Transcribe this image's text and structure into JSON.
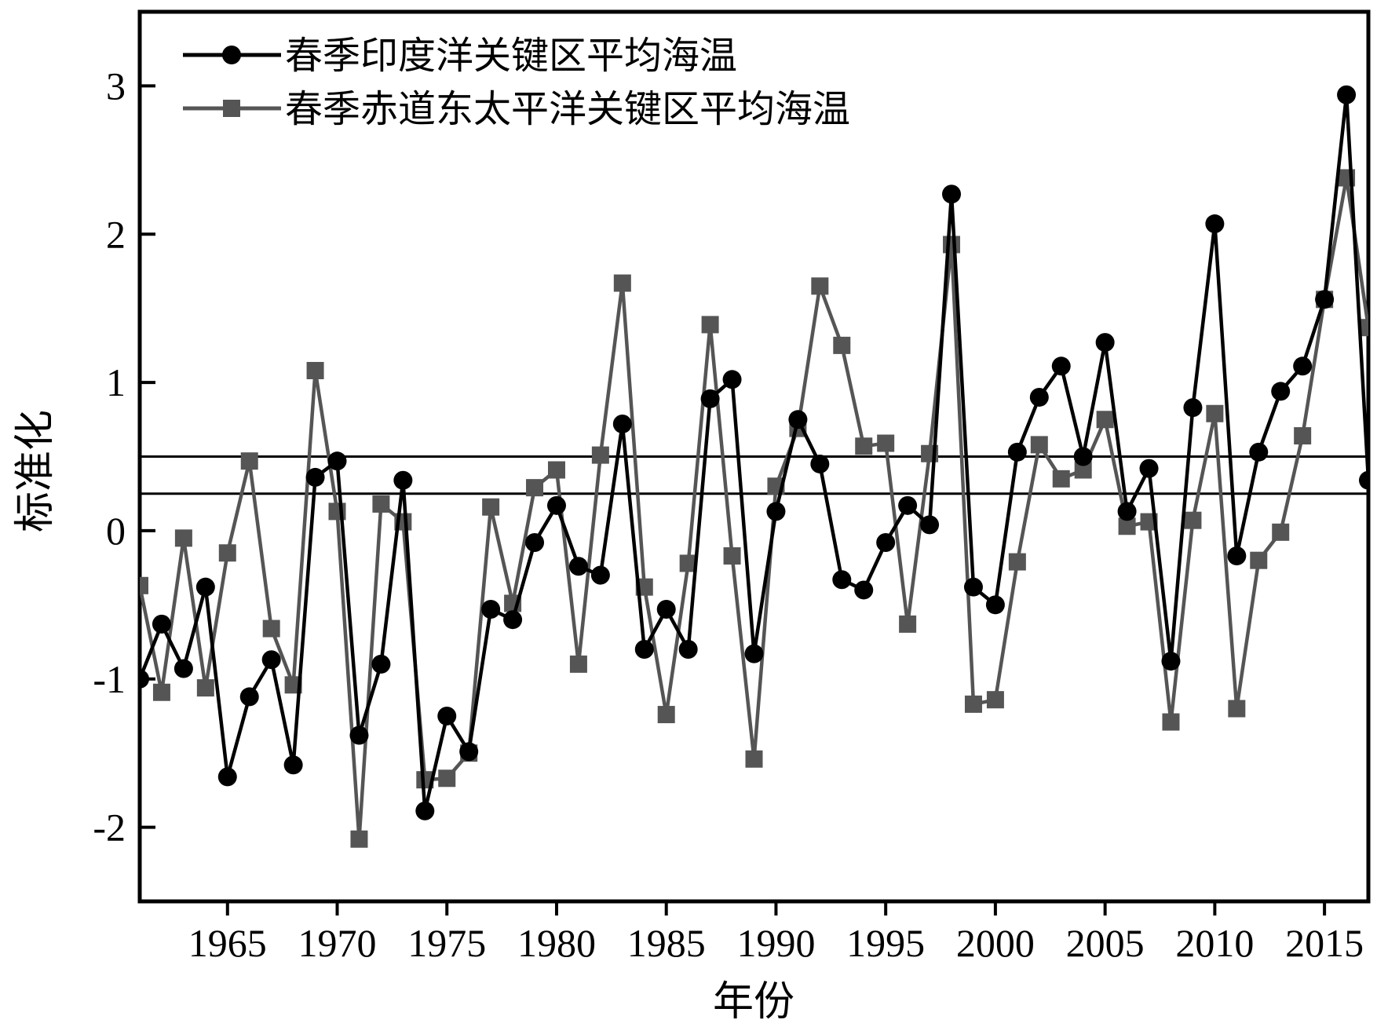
{
  "chart_data": {
    "type": "line",
    "title": "",
    "xlabel": "年份",
    "ylabel": "标准化",
    "xlim": [
      1961,
      2017
    ],
    "ylim": [
      -2.5,
      3.5
    ],
    "xticks": [
      1965,
      1970,
      1975,
      1980,
      1985,
      1990,
      1995,
      2000,
      2005,
      2010,
      2015
    ],
    "yticks": [
      -2,
      -1,
      0,
      1,
      2,
      3
    ],
    "grid": false,
    "legend": "top-left",
    "reference_lines": [
      0.5,
      0.25
    ],
    "x": [
      1961,
      1962,
      1963,
      1964,
      1965,
      1966,
      1967,
      1968,
      1969,
      1970,
      1971,
      1972,
      1973,
      1974,
      1975,
      1976,
      1977,
      1978,
      1979,
      1980,
      1981,
      1982,
      1983,
      1984,
      1985,
      1986,
      1987,
      1988,
      1989,
      1990,
      1991,
      1992,
      1993,
      1994,
      1995,
      1996,
      1997,
      1998,
      1999,
      2000,
      2001,
      2002,
      2003,
      2004,
      2005,
      2006,
      2007,
      2008,
      2009,
      2010,
      2011,
      2012,
      2013,
      2014,
      2015,
      2016,
      2017
    ],
    "series": [
      {
        "name": "春季印度洋关键区平均海温",
        "color": "#000000",
        "marker": "circle",
        "values": [
          -1.0,
          -0.63,
          -0.93,
          -0.38,
          -1.66,
          -1.12,
          -0.87,
          -1.58,
          0.36,
          0.47,
          -1.38,
          -0.9,
          0.34,
          -1.89,
          -1.25,
          -1.49,
          -0.53,
          -0.6,
          -0.08,
          0.17,
          -0.24,
          -0.3,
          0.72,
          -0.8,
          -0.53,
          -0.8,
          0.89,
          1.02,
          -0.83,
          0.13,
          0.75,
          0.45,
          -0.33,
          -0.4,
          -0.08,
          0.17,
          0.04,
          2.27,
          -0.38,
          -0.5,
          0.53,
          0.9,
          1.11,
          0.5,
          1.27,
          0.13,
          0.42,
          -0.88,
          0.83,
          2.07,
          -0.17,
          0.53,
          0.94,
          1.11,
          1.56,
          2.94,
          0.34
        ]
      },
      {
        "name": "春季赤道东太平洋关键区平均海温",
        "color": "#555555",
        "marker": "square",
        "values": [
          -0.37,
          -1.09,
          -0.05,
          -1.06,
          -0.15,
          0.47,
          -0.66,
          -1.04,
          1.08,
          0.13,
          -2.08,
          0.18,
          0.06,
          -1.68,
          -1.67,
          -1.5,
          0.16,
          -0.49,
          0.29,
          0.41,
          -0.9,
          0.51,
          1.67,
          -0.38,
          -1.24,
          -0.22,
          1.39,
          -0.17,
          -1.54,
          0.3,
          0.69,
          1.65,
          1.25,
          0.57,
          0.59,
          -0.63,
          0.52,
          1.93,
          -1.17,
          -1.14,
          -0.21,
          0.58,
          0.35,
          0.41,
          0.75,
          0.03,
          0.06,
          -1.29,
          0.07,
          0.79,
          -1.2,
          -0.2,
          -0.01,
          0.64,
          1.56,
          2.38,
          1.37
        ]
      }
    ]
  }
}
